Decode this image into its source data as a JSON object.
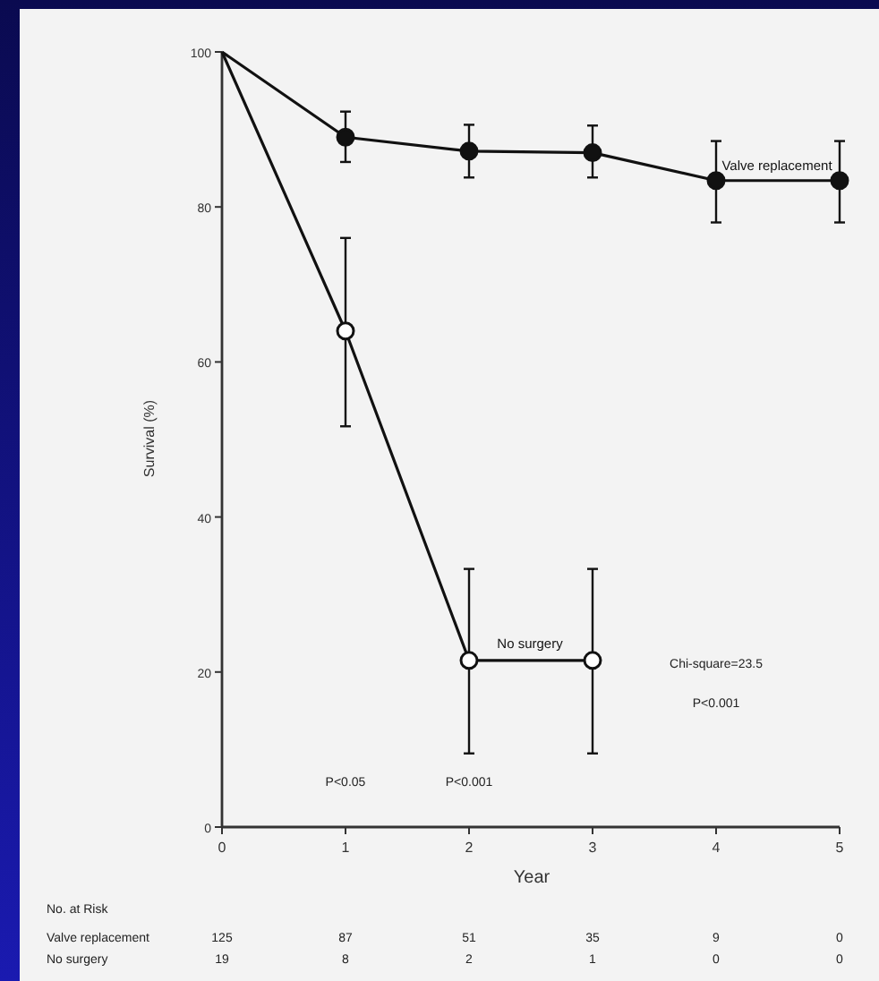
{
  "chart_data": {
    "type": "line",
    "xlabel": "Year",
    "ylabel": "Survival (%)",
    "x": [
      0,
      1,
      2,
      3,
      4,
      5
    ],
    "xlim": [
      0,
      5
    ],
    "ylim": [
      0,
      100
    ],
    "xticks": [
      0,
      1,
      2,
      3,
      4,
      5
    ],
    "yticks": [
      0,
      20,
      40,
      60,
      80,
      100
    ],
    "marker": "circle",
    "grid": false,
    "series": [
      {
        "name": "Valve replacement",
        "color": "#111111",
        "values": [
          100,
          89,
          87.2,
          87,
          83.4,
          83.4
        ],
        "errors": [
          null,
          [
            85.8,
            92.3
          ],
          [
            83.8,
            90.6
          ],
          [
            83.8,
            90.5
          ],
          [
            78,
            88.5
          ],
          [
            78,
            88.5
          ]
        ]
      },
      {
        "name": "No surgery",
        "color": "#111111",
        "values": [
          100,
          64,
          21.5,
          21.5,
          null,
          null
        ],
        "errors": [
          null,
          [
            51.7,
            76
          ],
          [
            9.5,
            33.3
          ],
          [
            9.5,
            33.3
          ],
          null,
          null
        ]
      }
    ],
    "annotations": [
      "P<0.05",
      "P<0.001",
      "Chi-square=23.5",
      "P<0.001",
      "No. at Risk",
      "Valve replacement",
      "No surgery",
      "125",
      "87",
      "51",
      "35",
      "9",
      "0",
      "19",
      "8",
      "2",
      "1",
      "0",
      "0"
    ]
  }
}
